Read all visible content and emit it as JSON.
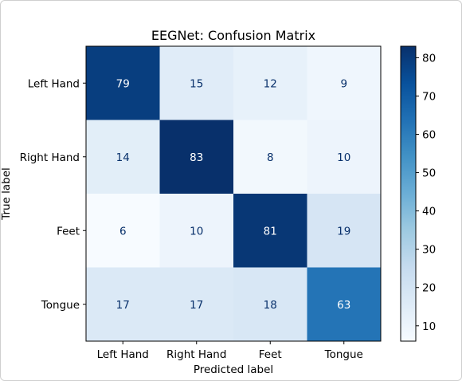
{
  "chart_data": {
    "type": "heatmap",
    "title": "EEGNet: Confusion Matrix",
    "xlabel": "Predicted label",
    "ylabel": "True label",
    "x_categories": [
      "Left Hand",
      "Right Hand",
      "Feet",
      "Tongue"
    ],
    "y_categories": [
      "Left Hand",
      "Right Hand",
      "Feet",
      "Tongue"
    ],
    "matrix": [
      [
        79,
        15,
        12,
        9
      ],
      [
        14,
        83,
        8,
        10
      ],
      [
        6,
        10,
        81,
        19
      ],
      [
        17,
        17,
        18,
        63
      ]
    ],
    "colormap": "Blues",
    "colorbar": {
      "min": 6,
      "max": 83,
      "ticks": [
        10,
        20,
        30,
        40,
        50,
        60,
        70,
        80
      ]
    }
  }
}
